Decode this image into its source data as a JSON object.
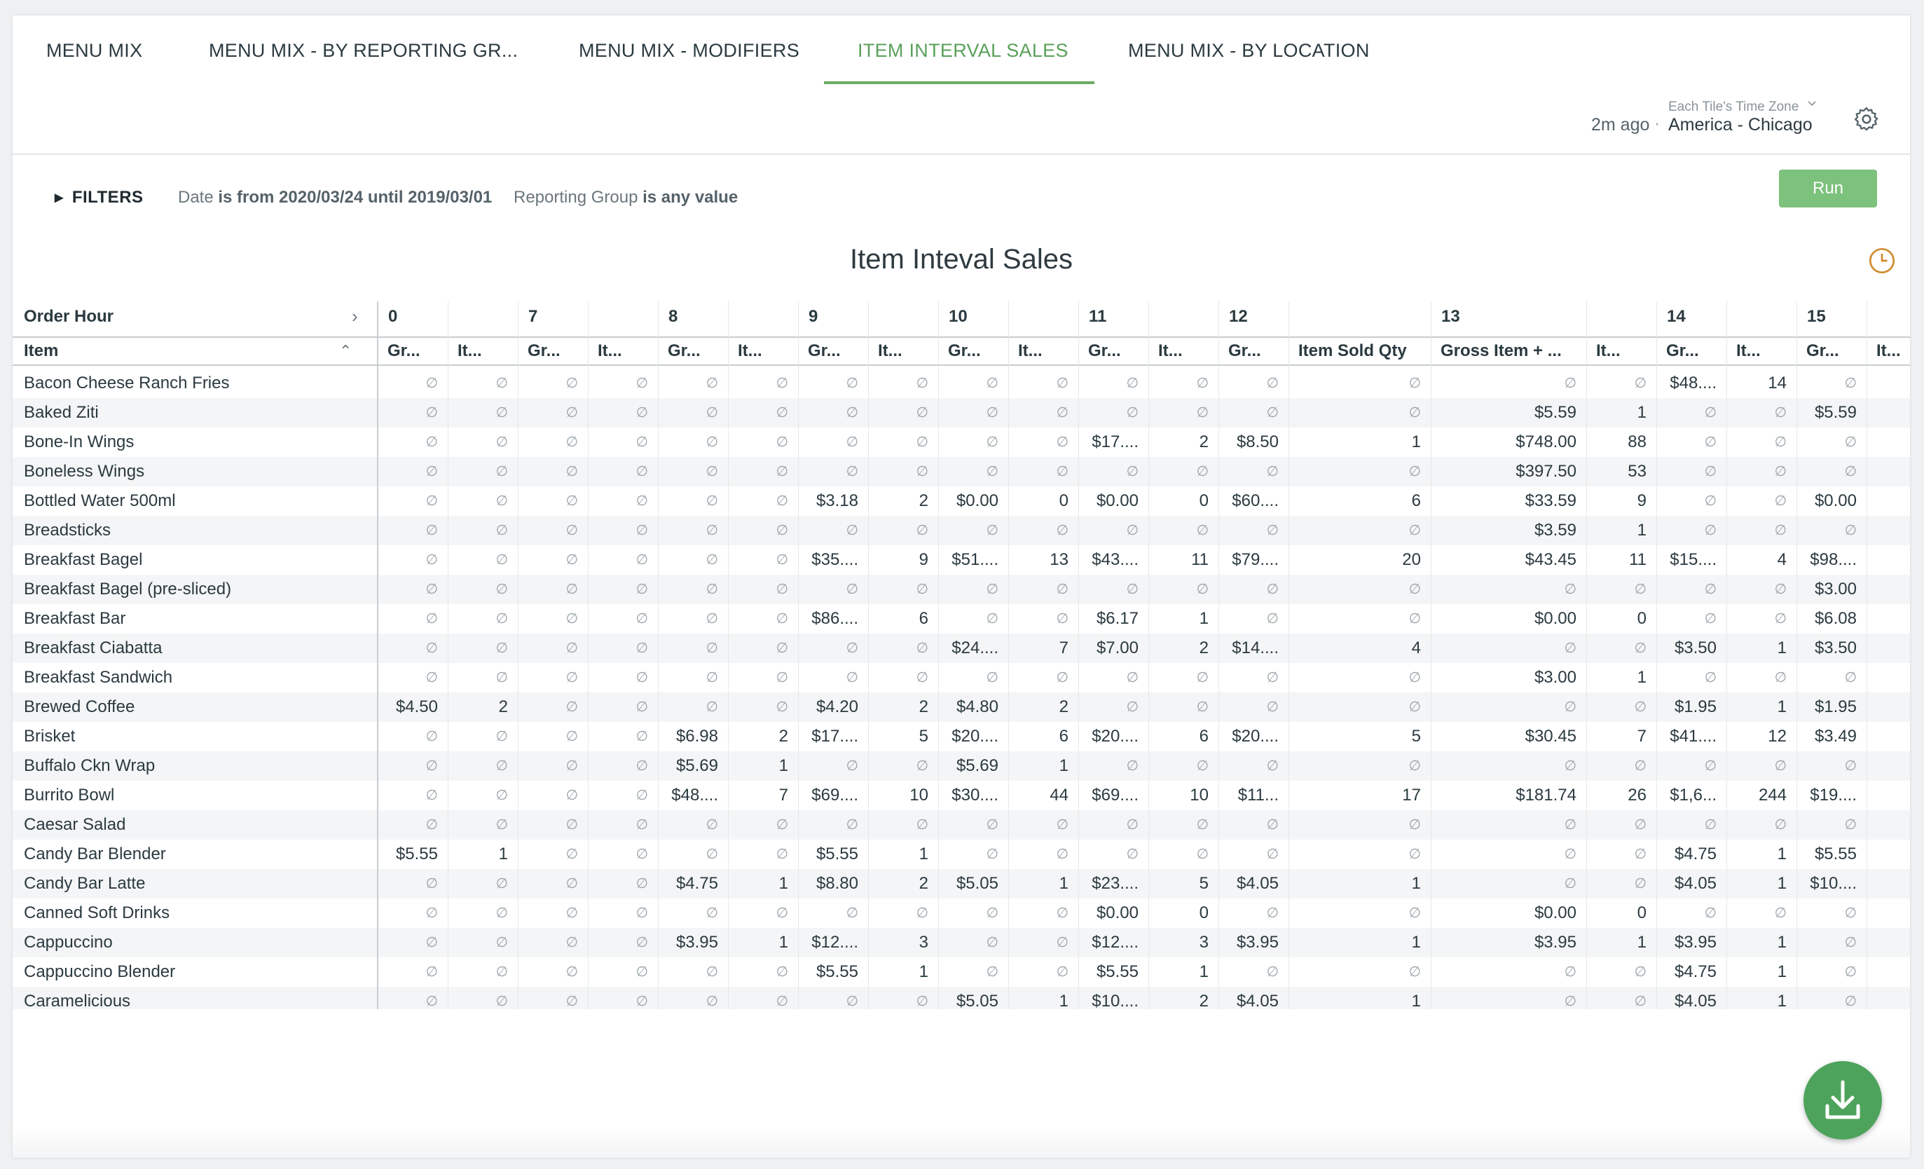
{
  "tabs": [
    {
      "label": "MENU MIX",
      "active": false
    },
    {
      "label": "MENU MIX - BY REPORTING GR...",
      "active": false
    },
    {
      "label": "MENU MIX - MODIFIERS",
      "active": false
    },
    {
      "label": "ITEM INTERVAL SALES",
      "active": true
    },
    {
      "label": "MENU MIX - BY LOCATION",
      "active": false
    }
  ],
  "status": {
    "last_run": "2m ago",
    "separator": "·",
    "timezone_label": "Each Tile's Time Zone",
    "timezone_value": "America - Chicago"
  },
  "filters": {
    "toggle_label": "FILTERS",
    "date_field": "Date",
    "date_condition": "is from 2020/03/24 until 2019/03/01",
    "group_field": "Reporting Group",
    "group_condition": "is any value",
    "run_label": "Run"
  },
  "visualization": {
    "title": "Item Inteval Sales",
    "pivot_label": "Order Hour",
    "row_label": "Item",
    "pivot_values": [
      "0",
      "7",
      "8",
      "9",
      "10",
      "11",
      "12",
      "13",
      "14",
      "15"
    ],
    "columns": [
      "Gr...",
      "It...",
      "Gr...",
      "It...",
      "Gr...",
      "It...",
      "Gr...",
      "It...",
      "Gr...",
      "It...",
      "Gr...",
      "It...",
      "Gr...",
      "Item Sold Qty",
      "Gross Item + ...",
      "It...",
      "Gr...",
      "It...",
      "Gr...",
      "It..."
    ],
    "null_symbol": "∅",
    "rows": [
      {
        "item": "Bacon Cheese Ranch Fries",
        "values": [
          null,
          null,
          null,
          null,
          null,
          null,
          null,
          null,
          null,
          null,
          null,
          null,
          null,
          null,
          null,
          null,
          "$48....",
          "14",
          null,
          null
        ]
      },
      {
        "item": "Baked Ziti",
        "values": [
          null,
          null,
          null,
          null,
          null,
          null,
          null,
          null,
          null,
          null,
          null,
          null,
          null,
          null,
          "$5.59",
          "1",
          null,
          null,
          "$5.59",
          null
        ]
      },
      {
        "item": "Bone-In Wings",
        "values": [
          null,
          null,
          null,
          null,
          null,
          null,
          null,
          null,
          null,
          null,
          "$17....",
          "2",
          "$8.50",
          "1",
          "$748.00",
          "88",
          null,
          null,
          null,
          null
        ]
      },
      {
        "item": "Boneless Wings",
        "values": [
          null,
          null,
          null,
          null,
          null,
          null,
          null,
          null,
          null,
          null,
          null,
          null,
          null,
          null,
          "$397.50",
          "53",
          null,
          null,
          null,
          null
        ]
      },
      {
        "item": "Bottled Water 500ml",
        "values": [
          null,
          null,
          null,
          null,
          null,
          null,
          "$3.18",
          "2",
          "$0.00",
          "0",
          "$0.00",
          "0",
          "$60....",
          "6",
          "$33.59",
          "9",
          null,
          null,
          "$0.00",
          null
        ]
      },
      {
        "item": "Breadsticks",
        "values": [
          null,
          null,
          null,
          null,
          null,
          null,
          null,
          null,
          null,
          null,
          null,
          null,
          null,
          null,
          "$3.59",
          "1",
          null,
          null,
          null,
          null
        ]
      },
      {
        "item": "Breakfast Bagel",
        "values": [
          null,
          null,
          null,
          null,
          null,
          null,
          "$35....",
          "9",
          "$51....",
          "13",
          "$43....",
          "11",
          "$79....",
          "20",
          "$43.45",
          "11",
          "$15....",
          "4",
          "$98....",
          ""
        ]
      },
      {
        "item": "Breakfast Bagel (pre-sliced)",
        "values": [
          null,
          null,
          null,
          null,
          null,
          null,
          null,
          null,
          null,
          null,
          null,
          null,
          null,
          null,
          null,
          null,
          null,
          null,
          "$3.00",
          null
        ]
      },
      {
        "item": "Breakfast Bar",
        "values": [
          null,
          null,
          null,
          null,
          null,
          null,
          "$86....",
          "6",
          null,
          null,
          "$6.17",
          "1",
          null,
          null,
          "$0.00",
          "0",
          null,
          null,
          "$6.08",
          null
        ]
      },
      {
        "item": "Breakfast Ciabatta",
        "values": [
          null,
          null,
          null,
          null,
          null,
          null,
          null,
          null,
          "$24....",
          "7",
          "$7.00",
          "2",
          "$14....",
          "4",
          null,
          null,
          "$3.50",
          "1",
          "$3.50",
          null
        ]
      },
      {
        "item": "Breakfast Sandwich",
        "values": [
          null,
          null,
          null,
          null,
          null,
          null,
          null,
          null,
          null,
          null,
          null,
          null,
          null,
          null,
          "$3.00",
          "1",
          null,
          null,
          null,
          null
        ]
      },
      {
        "item": "Brewed Coffee",
        "values": [
          "$4.50",
          "2",
          null,
          null,
          null,
          null,
          "$4.20",
          "2",
          "$4.80",
          "2",
          null,
          null,
          null,
          null,
          null,
          null,
          "$1.95",
          "1",
          "$1.95",
          null
        ]
      },
      {
        "item": "Brisket",
        "values": [
          null,
          null,
          null,
          null,
          "$6.98",
          "2",
          "$17....",
          "5",
          "$20....",
          "6",
          "$20....",
          "6",
          "$20....",
          "5",
          "$30.45",
          "7",
          "$41....",
          "12",
          "$3.49",
          null
        ]
      },
      {
        "item": "Buffalo Ckn Wrap",
        "values": [
          null,
          null,
          null,
          null,
          "$5.69",
          "1",
          null,
          null,
          "$5.69",
          "1",
          null,
          null,
          null,
          null,
          null,
          null,
          null,
          null,
          null,
          null
        ]
      },
      {
        "item": "Burrito Bowl",
        "values": [
          null,
          null,
          null,
          null,
          "$48....",
          "7",
          "$69....",
          "10",
          "$30....",
          "44",
          "$69....",
          "10",
          "$11...",
          "17",
          "$181.74",
          "26",
          "$1,6...",
          "244",
          "$19....",
          ""
        ]
      },
      {
        "item": "Caesar Salad",
        "values": [
          null,
          null,
          null,
          null,
          null,
          null,
          null,
          null,
          null,
          null,
          null,
          null,
          null,
          null,
          null,
          null,
          null,
          null,
          null,
          null
        ]
      },
      {
        "item": "Candy Bar Blender",
        "values": [
          "$5.55",
          "1",
          null,
          null,
          null,
          null,
          "$5.55",
          "1",
          null,
          null,
          null,
          null,
          null,
          null,
          null,
          null,
          "$4.75",
          "1",
          "$5.55",
          null
        ]
      },
      {
        "item": "Candy Bar Latte",
        "values": [
          null,
          null,
          null,
          null,
          "$4.75",
          "1",
          "$8.80",
          "2",
          "$5.05",
          "1",
          "$23....",
          "5",
          "$4.05",
          "1",
          null,
          null,
          "$4.05",
          "1",
          "$10....",
          null
        ]
      },
      {
        "item": "Canned Soft Drinks",
        "values": [
          null,
          null,
          null,
          null,
          null,
          null,
          null,
          null,
          null,
          null,
          "$0.00",
          "0",
          null,
          null,
          "$0.00",
          "0",
          null,
          null,
          null,
          null
        ]
      },
      {
        "item": "Cappuccino",
        "values": [
          null,
          null,
          null,
          null,
          "$3.95",
          "1",
          "$12....",
          "3",
          null,
          null,
          "$12....",
          "3",
          "$3.95",
          "1",
          "$3.95",
          "1",
          "$3.95",
          "1",
          null,
          null
        ]
      },
      {
        "item": "Cappuccino Blender",
        "values": [
          null,
          null,
          null,
          null,
          null,
          null,
          "$5.55",
          "1",
          null,
          null,
          "$5.55",
          "1",
          null,
          null,
          null,
          null,
          "$4.75",
          "1",
          null,
          null
        ]
      },
      {
        "item": "Caramelicious",
        "values": [
          null,
          null,
          null,
          null,
          null,
          null,
          null,
          null,
          "$5.05",
          "1",
          "$10....",
          "2",
          "$4.05",
          "1",
          null,
          null,
          "$4.05",
          "1",
          null,
          null
        ]
      }
    ]
  },
  "colors": {
    "accent": "#5aa05a",
    "run_button": "#7cc17c",
    "download_button": "#4ea35c",
    "clock_icon": "#d08a2c"
  },
  "icons": {
    "gear": "gear-icon",
    "clock": "clock-icon",
    "download": "download-icon",
    "filters": "caret-right-icon",
    "pivot": "chevron-right-icon",
    "sort": "sort-ascending-icon"
  }
}
